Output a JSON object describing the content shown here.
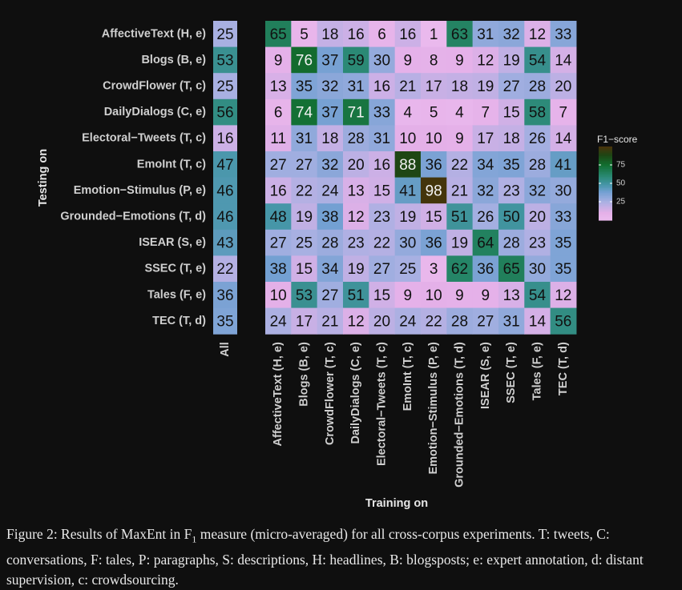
{
  "chart_data": {
    "type": "heatmap",
    "xlabel": "Training on",
    "ylabel": "Testing on",
    "legend": {
      "title": "F1−score",
      "ticks": [
        75,
        50,
        25
      ],
      "range": [
        0,
        100
      ],
      "placement": "right"
    },
    "all_label": "All",
    "rows": [
      "AffectiveText (H, e)",
      "Blogs (B, e)",
      "CrowdFlower (T, c)",
      "DailyDialogs (C, e)",
      "Electoral−Tweets (T, c)",
      "EmoInt (T, c)",
      "Emotion−Stimulus (P, e)",
      "Grounded−Emotions (T, d)",
      "ISEAR (S, e)",
      "SSEC (T, e)",
      "Tales (F, e)",
      "TEC (T, d)"
    ],
    "columns": [
      "AffectiveText (H, e)",
      "Blogs (B, e)",
      "CrowdFlower (T, c)",
      "DailyDialogs (C, e)",
      "Electoral−Tweets (T, c)",
      "EmoInt (T, c)",
      "Emotion−Stimulus (P, e)",
      "Grounded−Emotions (T, d)",
      "ISEAR (S, e)",
      "SSEC (T, e)",
      "Tales (F, e)",
      "TEC (T, d)"
    ],
    "all_values": [
      25,
      53,
      25,
      56,
      16,
      47,
      46,
      46,
      43,
      22,
      36,
      35
    ],
    "values": [
      [
        65,
        5,
        18,
        16,
        6,
        16,
        1,
        63,
        31,
        32,
        12,
        33
      ],
      [
        9,
        76,
        37,
        59,
        30,
        9,
        8,
        9,
        12,
        19,
        54,
        14
      ],
      [
        13,
        35,
        32,
        31,
        16,
        21,
        17,
        18,
        19,
        27,
        28,
        20
      ],
      [
        6,
        74,
        37,
        71,
        33,
        4,
        5,
        4,
        7,
        15,
        58,
        7
      ],
      [
        11,
        31,
        18,
        28,
        31,
        10,
        10,
        9,
        17,
        18,
        26,
        14
      ],
      [
        27,
        27,
        32,
        20,
        16,
        88,
        36,
        22,
        34,
        35,
        28,
        41
      ],
      [
        16,
        22,
        24,
        13,
        15,
        41,
        98,
        21,
        32,
        23,
        32,
        30
      ],
      [
        48,
        19,
        38,
        12,
        23,
        19,
        15,
        51,
        26,
        50,
        20,
        33
      ],
      [
        27,
        25,
        28,
        23,
        22,
        30,
        36,
        19,
        64,
        28,
        23,
        35
      ],
      [
        38,
        15,
        34,
        19,
        27,
        25,
        3,
        62,
        36,
        65,
        30,
        35
      ],
      [
        10,
        53,
        27,
        51,
        15,
        9,
        10,
        9,
        9,
        13,
        54,
        12
      ],
      [
        24,
        17,
        21,
        12,
        20,
        24,
        22,
        28,
        27,
        31,
        14,
        56
      ]
    ]
  },
  "caption": {
    "prefix": "Figure 2: Results of MaxEnt in F",
    "sub": "1",
    "rest": " measure (micro-averaged) for all cross-corpus experiments. T: tweets, C: conversations, F: tales, P: paragraphs, S: descriptions, H: headlines, B: blogsposts; e: expert annotation, d: distant supervision, c: crowdsourcing."
  }
}
